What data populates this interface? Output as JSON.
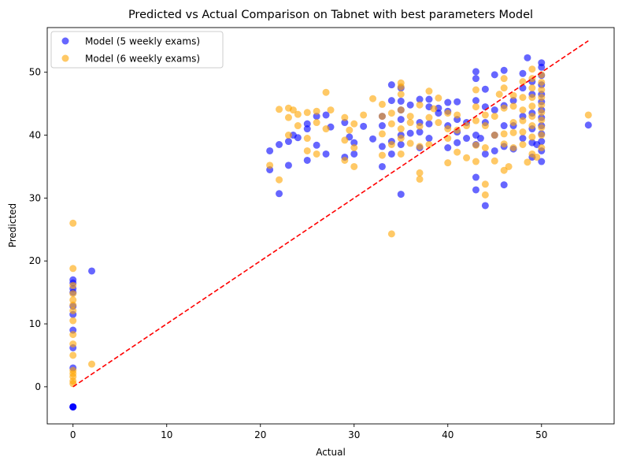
{
  "chart_data": {
    "type": "scatter",
    "title": "Predicted vs Actual Comparison on Tabnet with best parameters Model",
    "xlabel": "Actual",
    "ylabel": "Predicted",
    "xlim": [
      -2.75,
      57.75
    ],
    "ylim": [
      -5.9,
      57.1
    ],
    "xticks": [
      0,
      10,
      20,
      30,
      40,
      50
    ],
    "yticks": [
      0,
      10,
      20,
      30,
      40,
      50
    ],
    "grid": false,
    "legend": {
      "placement": "top-left"
    },
    "reference_line": {
      "type": "y=x",
      "from": 0,
      "to": 55,
      "color": "#ff0000",
      "style": "dashed"
    },
    "series": [
      {
        "name": "Model (5 weekly exams)",
        "color": "#0000ff",
        "alpha": 0.6,
        "points": [
          [
            0,
            -3.2
          ],
          [
            0,
            -3.2
          ],
          [
            0,
            -3.2
          ],
          [
            0,
            -3.2
          ],
          [
            0,
            3.0
          ],
          [
            0,
            6.2
          ],
          [
            0,
            9.0
          ],
          [
            0,
            11.5
          ],
          [
            0,
            12.8
          ],
          [
            0,
            15.0
          ],
          [
            0,
            15.6
          ],
          [
            0,
            16.5
          ],
          [
            0,
            17.0
          ],
          [
            2,
            18.4
          ],
          [
            21,
            34.5
          ],
          [
            21,
            37.5
          ],
          [
            22,
            30.7
          ],
          [
            22,
            38.5
          ],
          [
            23,
            35.2
          ],
          [
            23,
            39.0
          ],
          [
            23.5,
            40.0
          ],
          [
            24,
            39.6
          ],
          [
            25,
            36.0
          ],
          [
            25,
            41.0
          ],
          [
            25,
            41.8
          ],
          [
            26,
            38.4
          ],
          [
            26,
            43.0
          ],
          [
            27,
            37.0
          ],
          [
            27,
            43.2
          ],
          [
            27.5,
            41.3
          ],
          [
            29,
            36.5
          ],
          [
            29,
            42.0
          ],
          [
            29.5,
            39.7
          ],
          [
            30,
            37.0
          ],
          [
            30,
            38.8
          ],
          [
            31,
            41.4
          ],
          [
            32,
            39.4
          ],
          [
            33,
            35.0
          ],
          [
            33,
            38.2
          ],
          [
            33,
            41.5
          ],
          [
            33,
            43.0
          ],
          [
            34,
            37.0
          ],
          [
            34,
            39.0
          ],
          [
            34,
            45.5
          ],
          [
            34,
            48.0
          ],
          [
            35,
            30.6
          ],
          [
            35,
            38.5
          ],
          [
            35,
            40.0
          ],
          [
            35,
            42.5
          ],
          [
            35,
            44.0
          ],
          [
            35,
            45.4
          ],
          [
            35,
            47.5
          ],
          [
            36,
            40.3
          ],
          [
            36,
            44.8
          ],
          [
            37,
            38.0
          ],
          [
            37,
            40.5
          ],
          [
            37,
            42.0
          ],
          [
            37,
            45.7
          ],
          [
            38,
            39.5
          ],
          [
            38,
            41.8
          ],
          [
            38,
            44.5
          ],
          [
            38,
            45.7
          ],
          [
            39,
            43.5
          ],
          [
            39,
            44.3
          ],
          [
            40,
            38.0
          ],
          [
            40,
            41.5
          ],
          [
            40,
            43.8
          ],
          [
            40,
            45.2
          ],
          [
            41,
            38.8
          ],
          [
            41,
            40.5
          ],
          [
            41,
            42.5
          ],
          [
            41,
            45.3
          ],
          [
            42,
            39.5
          ],
          [
            42,
            42.0
          ],
          [
            43,
            31.3
          ],
          [
            43,
            33.3
          ],
          [
            43,
            38.5
          ],
          [
            43,
            40.0
          ],
          [
            43,
            45.5
          ],
          [
            43,
            49.0
          ],
          [
            43,
            50.1
          ],
          [
            43.5,
            39.5
          ],
          [
            44,
            28.8
          ],
          [
            44,
            37.0
          ],
          [
            44,
            42.0
          ],
          [
            44,
            44.5
          ],
          [
            44,
            47.3
          ],
          [
            45,
            37.5
          ],
          [
            45,
            40.0
          ],
          [
            45,
            44.0
          ],
          [
            45,
            49.6
          ],
          [
            46,
            32.1
          ],
          [
            46,
            38.2
          ],
          [
            46,
            41.5
          ],
          [
            46,
            44.7
          ],
          [
            46,
            50.3
          ],
          [
            47,
            37.8
          ],
          [
            47,
            41.5
          ],
          [
            47,
            45.5
          ],
          [
            48,
            39.5
          ],
          [
            48,
            43.0
          ],
          [
            48,
            47.5
          ],
          [
            48,
            49.8
          ],
          [
            48.5,
            52.3
          ],
          [
            49,
            36.5
          ],
          [
            49,
            38.8
          ],
          [
            49,
            41.0
          ],
          [
            49,
            43.5
          ],
          [
            49,
            46.5
          ],
          [
            49,
            48.5
          ],
          [
            49.5,
            38.5
          ],
          [
            50,
            35.8
          ],
          [
            50,
            37.5
          ],
          [
            50,
            39.0
          ],
          [
            50,
            40.2
          ],
          [
            50,
            41.5
          ],
          [
            50,
            42.8
          ],
          [
            50,
            44.0
          ],
          [
            50,
            45.3
          ],
          [
            50,
            46.5
          ],
          [
            50,
            48.0
          ],
          [
            50,
            49.5
          ],
          [
            50,
            50.8
          ],
          [
            50,
            51.5
          ],
          [
            55,
            41.6
          ]
        ]
      },
      {
        "name": "Model (6 weekly exams)",
        "color": "#ffa500",
        "alpha": 0.6,
        "points": [
          [
            0,
            0.5
          ],
          [
            0,
            0.9
          ],
          [
            0,
            1.6
          ],
          [
            0,
            2.1
          ],
          [
            0,
            2.6
          ],
          [
            0,
            5.0
          ],
          [
            0,
            6.8
          ],
          [
            0,
            8.3
          ],
          [
            0,
            10.5
          ],
          [
            0,
            12.1
          ],
          [
            0,
            13.0
          ],
          [
            0,
            13.8
          ],
          [
            0,
            14.8
          ],
          [
            0,
            16.1
          ],
          [
            0,
            18.8
          ],
          [
            0,
            26.0
          ],
          [
            2,
            3.6
          ],
          [
            21,
            35.2
          ],
          [
            22,
            32.9
          ],
          [
            22,
            44.1
          ],
          [
            23,
            40.0
          ],
          [
            23,
            42.8
          ],
          [
            23,
            44.3
          ],
          [
            23.5,
            44.0
          ],
          [
            24,
            41.5
          ],
          [
            24,
            43.3
          ],
          [
            25,
            37.5
          ],
          [
            25,
            39.5
          ],
          [
            25,
            43.6
          ],
          [
            26,
            37.0
          ],
          [
            26,
            42.0
          ],
          [
            26,
            43.8
          ],
          [
            27,
            41.0
          ],
          [
            27,
            46.8
          ],
          [
            27.5,
            44.0
          ],
          [
            29,
            36.0
          ],
          [
            29,
            39.2
          ],
          [
            29,
            42.8
          ],
          [
            29.5,
            40.8
          ],
          [
            30,
            35.0
          ],
          [
            30,
            38.0
          ],
          [
            30,
            41.8
          ],
          [
            31,
            43.2
          ],
          [
            32,
            45.8
          ],
          [
            33,
            36.8
          ],
          [
            33,
            40.2
          ],
          [
            33,
            43.0
          ],
          [
            33,
            44.9
          ],
          [
            34,
            24.3
          ],
          [
            34,
            38.5
          ],
          [
            34,
            41.8
          ],
          [
            34,
            43.5
          ],
          [
            35,
            37.0
          ],
          [
            35,
            39.5
          ],
          [
            35,
            41.0
          ],
          [
            35,
            44.0
          ],
          [
            35,
            46.5
          ],
          [
            35,
            47.7
          ],
          [
            35,
            48.3
          ],
          [
            36,
            38.7
          ],
          [
            36,
            42.0
          ],
          [
            36,
            43.0
          ],
          [
            37,
            33.0
          ],
          [
            37,
            34.0
          ],
          [
            37,
            38.2
          ],
          [
            37,
            41.4
          ],
          [
            37,
            44.8
          ],
          [
            38,
            38.5
          ],
          [
            38,
            42.8
          ],
          [
            38,
            47.0
          ],
          [
            38.5,
            44.2
          ],
          [
            39,
            42.0
          ],
          [
            39,
            45.9
          ],
          [
            40,
            35.6
          ],
          [
            40,
            39.5
          ],
          [
            40,
            41.0
          ],
          [
            40,
            43.5
          ],
          [
            41,
            37.3
          ],
          [
            41,
            40.8
          ],
          [
            41,
            43.2
          ],
          [
            42,
            36.4
          ],
          [
            42,
            41.5
          ],
          [
            43,
            35.8
          ],
          [
            43,
            38.4
          ],
          [
            43,
            42.3
          ],
          [
            43,
            44.5
          ],
          [
            43,
            47.2
          ],
          [
            44,
            30.5
          ],
          [
            44,
            32.2
          ],
          [
            44,
            38.0
          ],
          [
            44,
            41.5
          ],
          [
            44,
            43.2
          ],
          [
            45,
            35.9
          ],
          [
            45,
            40.0
          ],
          [
            45,
            43.0
          ],
          [
            45.5,
            46.5
          ],
          [
            46,
            34.4
          ],
          [
            46,
            38.6
          ],
          [
            46,
            40.2
          ],
          [
            46,
            44.3
          ],
          [
            46,
            47.5
          ],
          [
            46,
            49.0
          ],
          [
            46.5,
            35.0
          ],
          [
            47,
            38.0
          ],
          [
            47,
            40.4
          ],
          [
            47,
            42.0
          ],
          [
            47,
            44.6
          ],
          [
            47,
            46.3
          ],
          [
            48,
            38.5
          ],
          [
            48,
            40.5
          ],
          [
            48,
            42.3
          ],
          [
            48,
            44.0
          ],
          [
            48,
            46.0
          ],
          [
            48,
            48.5
          ],
          [
            48.5,
            35.7
          ],
          [
            49,
            37.0
          ],
          [
            49,
            39.7
          ],
          [
            49,
            41.5
          ],
          [
            49,
            43.0
          ],
          [
            49,
            44.6
          ],
          [
            49,
            46.0
          ],
          [
            49,
            47.5
          ],
          [
            49,
            49.0
          ],
          [
            49,
            50.5
          ],
          [
            49.5,
            36.5
          ],
          [
            50,
            38.0
          ],
          [
            50,
            40.0
          ],
          [
            50,
            41.2
          ],
          [
            50,
            42.4
          ],
          [
            50,
            43.6
          ],
          [
            50,
            44.8
          ],
          [
            50,
            46.0
          ],
          [
            50,
            47.2
          ],
          [
            50,
            48.4
          ],
          [
            50,
            49.6
          ],
          [
            55,
            43.2
          ]
        ]
      }
    ]
  }
}
